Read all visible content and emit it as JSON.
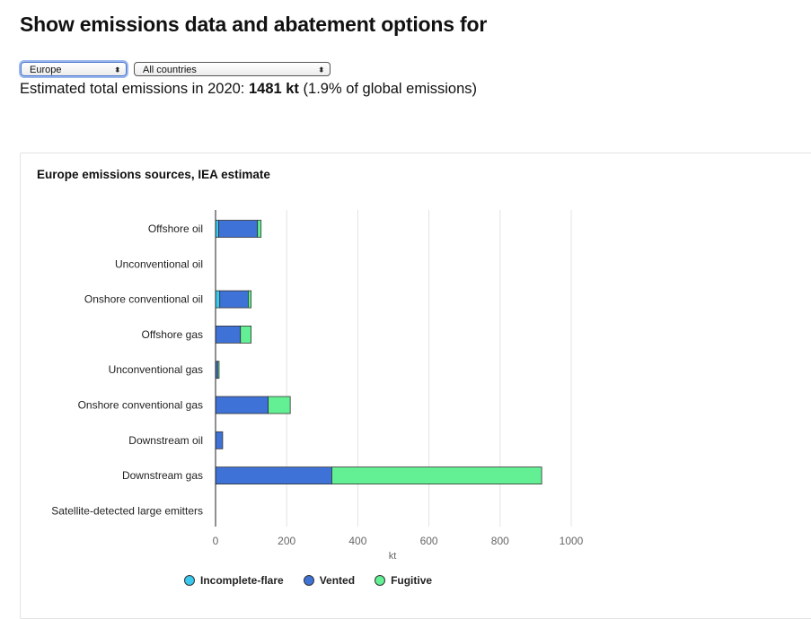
{
  "header": {
    "title": "Show emissions data and abatement options for"
  },
  "filters": {
    "region": {
      "value": "Europe"
    },
    "country": {
      "value": "All countries"
    }
  },
  "summary": {
    "prefix": "Estimated total emissions in 2020: ",
    "total": "1481 kt",
    "suffix": " (1.9% of global emissions)"
  },
  "colors": {
    "incomplete_flare": "#3ac8ee",
    "vented": "#3f72d6",
    "fugitive": "#63ef93",
    "grid": "#e4e4e4",
    "bar_stroke": "#333333"
  },
  "chart_data": {
    "type": "bar",
    "orientation": "horizontal",
    "stacked": true,
    "title": "Europe emissions sources, IEA estimate",
    "xlabel": "kt",
    "ylabel": "",
    "xlim": [
      0,
      1000
    ],
    "xticks": [
      0,
      200,
      400,
      600,
      800,
      1000
    ],
    "grid": true,
    "legend_position": "bottom",
    "categories": [
      "Offshore oil",
      "Unconventional oil",
      "Onshore conventional oil",
      "Offshore gas",
      "Unconventional gas",
      "Onshore conventional gas",
      "Downstream oil",
      "Downstream gas",
      "Satellite-detected large emitters"
    ],
    "series": [
      {
        "name": "Incomplete-flare",
        "values": [
          9,
          0,
          12,
          0,
          0,
          0,
          0,
          0,
          0
        ]
      },
      {
        "name": "Vented",
        "values": [
          109,
          0,
          80,
          70,
          6,
          148,
          20,
          327,
          0
        ]
      },
      {
        "name": "Fugitive",
        "values": [
          10,
          0,
          8,
          30,
          4,
          62,
          0,
          590,
          0
        ]
      }
    ]
  }
}
